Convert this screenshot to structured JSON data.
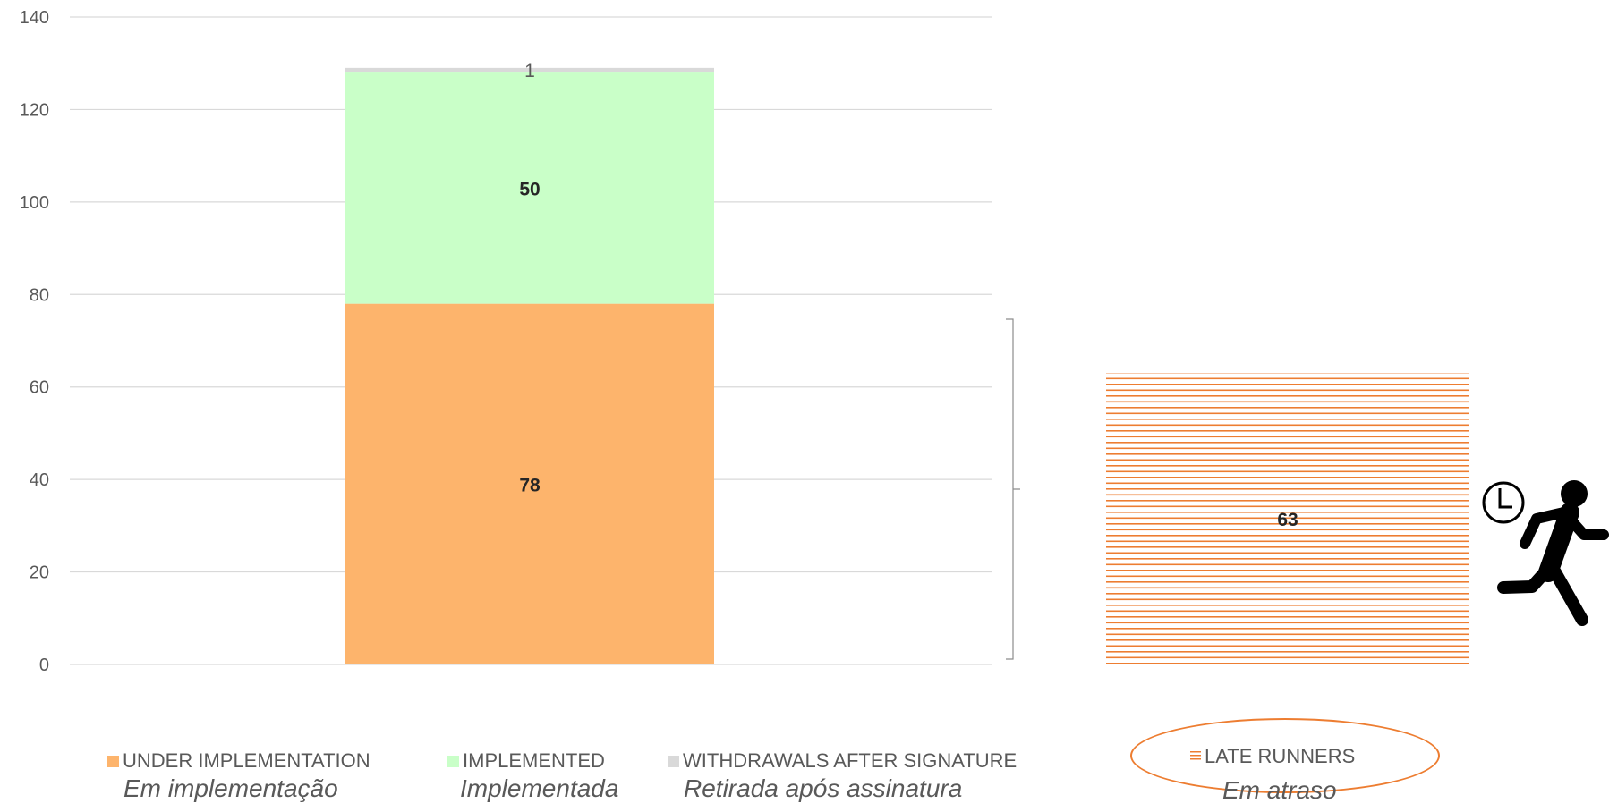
{
  "colors": {
    "under_implementation": "#FDB46C",
    "implemented": "#C9FFC8",
    "withdrawals": "#D9D9D9",
    "late_runners": "#ED7D31",
    "grid": "#D9D9D9",
    "tick_text": "#595959"
  },
  "icons": [
    "clock-icon",
    "running-person-icon"
  ],
  "chart_data": {
    "type": "bar",
    "stacked": true,
    "categories": [
      ""
    ],
    "series": [
      {
        "name": "UNDER IMPLEMENTATION",
        "values": [
          78
        ]
      },
      {
        "name": "IMPLEMENTED",
        "values": [
          50
        ]
      },
      {
        "name": "WITHDRAWALS AFTER SIGNATURE",
        "values": [
          1
        ]
      }
    ],
    "extra_bar": {
      "name": "LATE RUNNERS",
      "value": 63,
      "pattern": "horizontal-lines"
    },
    "ylim": [
      0,
      140
    ],
    "yticks": [
      "0",
      "20",
      "40",
      "60",
      "80",
      "100",
      "120",
      "140"
    ],
    "grid": true,
    "legend_position": "bottom",
    "data_labels": [
      "78",
      "50",
      "1",
      "63"
    ]
  },
  "legend": {
    "under_implementation": {
      "label": "UNDER IMPLEMENTATION",
      "subtitle": "Em implementação"
    },
    "implemented": {
      "label": "IMPLEMENTED",
      "subtitle": "Implementada"
    },
    "withdrawals": {
      "label": "WITHDRAWALS AFTER SIGNATURE",
      "subtitle": "Retirada após assinatura"
    },
    "late_runners": {
      "label": "LATE RUNNERS",
      "subtitle": "Em atraso"
    }
  }
}
